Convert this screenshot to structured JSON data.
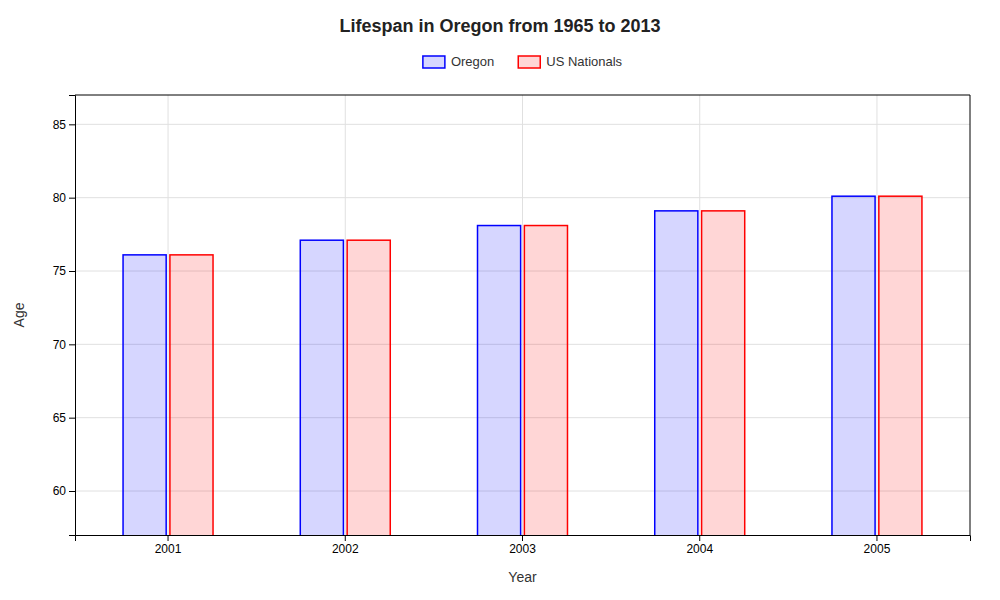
{
  "chart_data": {
    "type": "bar",
    "title": "Lifespan in Oregon from 1965 to 2013",
    "xlabel": "Year",
    "ylabel": "Age",
    "categories": [
      "2001",
      "2002",
      "2003",
      "2004",
      "2005"
    ],
    "series": [
      {
        "name": "Oregon",
        "color": "#0000ff",
        "values": [
          76.1,
          77.1,
          78.1,
          79.1,
          80.1
        ]
      },
      {
        "name": "US Nationals",
        "color": "#ff0000",
        "values": [
          76.1,
          77.1,
          78.1,
          79.1,
          80.1
        ]
      }
    ],
    "ylim": [
      57,
      87
    ],
    "yticks": [
      60,
      65,
      70,
      75,
      80,
      85
    ],
    "grid": true,
    "legend": "top"
  }
}
